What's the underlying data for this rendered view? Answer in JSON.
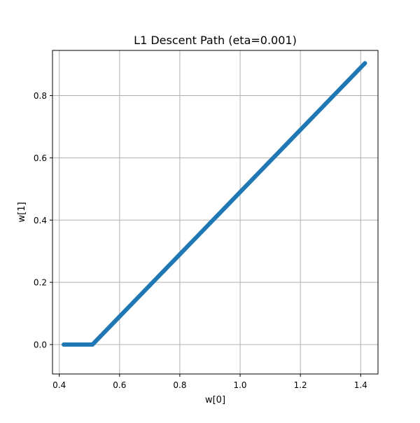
{
  "chart_data": {
    "type": "scatter",
    "title": "L1 Descent Path (eta=0.001)",
    "xlabel": "w[0]",
    "ylabel": "w[1]",
    "xlim": [
      0.3775,
      1.4574
    ],
    "ylim": [
      -0.0945,
      0.9452
    ],
    "xticks": [
      0.4,
      0.6,
      0.8,
      1.0,
      1.2,
      1.4
    ],
    "xtick_labels": [
      "0.4",
      "0.6",
      "0.8",
      "1.0",
      "1.2",
      "1.4"
    ],
    "yticks": [
      0.0,
      0.2,
      0.4,
      0.6,
      0.8
    ],
    "ytick_labels": [
      "0.0",
      "0.2",
      "0.4",
      "0.6",
      "0.8"
    ],
    "grid": true,
    "color": "#1f77b4",
    "marker": "circle",
    "series": [
      {
        "x": [
          1.414,
          1.39,
          1.35,
          1.3,
          1.25,
          1.2,
          1.15,
          1.1,
          1.05,
          1.0,
          0.95,
          0.9,
          0.85,
          0.8,
          0.75,
          0.7,
          0.65,
          0.6,
          0.55,
          0.51,
          0.49,
          0.47,
          0.45,
          0.43,
          0.415
        ],
        "y": [
          0.904,
          0.88,
          0.84,
          0.79,
          0.74,
          0.69,
          0.64,
          0.59,
          0.54,
          0.49,
          0.44,
          0.39,
          0.34,
          0.29,
          0.24,
          0.19,
          0.14,
          0.09,
          0.04,
          0.0,
          0.0,
          0.0,
          0.0,
          0.0,
          0.0
        ]
      }
    ]
  }
}
